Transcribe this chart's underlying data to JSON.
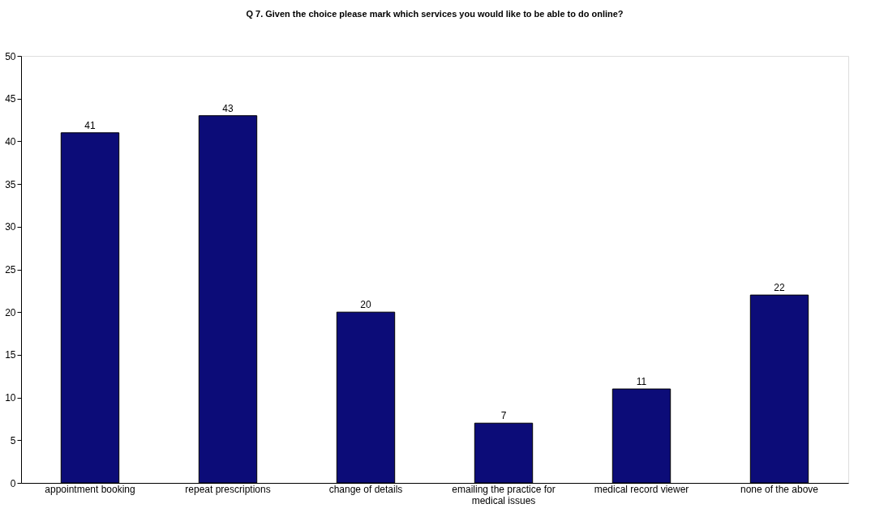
{
  "chart_data": {
    "type": "bar",
    "title": "Q 7. Given the choice please mark which services you would like to be able to do online?",
    "categories": [
      "appointment booking",
      "repeat prescriptions",
      "change of details",
      "emailing the practice for medical issues",
      "medical record viewer",
      "none of the above"
    ],
    "values": [
      41,
      43,
      20,
      7,
      11,
      22
    ],
    "color": "#0c0c78",
    "ylim": [
      0,
      50
    ],
    "yticks": [
      0,
      5,
      10,
      15,
      20,
      25,
      30,
      35,
      40,
      45,
      50
    ],
    "grid": false,
    "data_labels": true
  }
}
